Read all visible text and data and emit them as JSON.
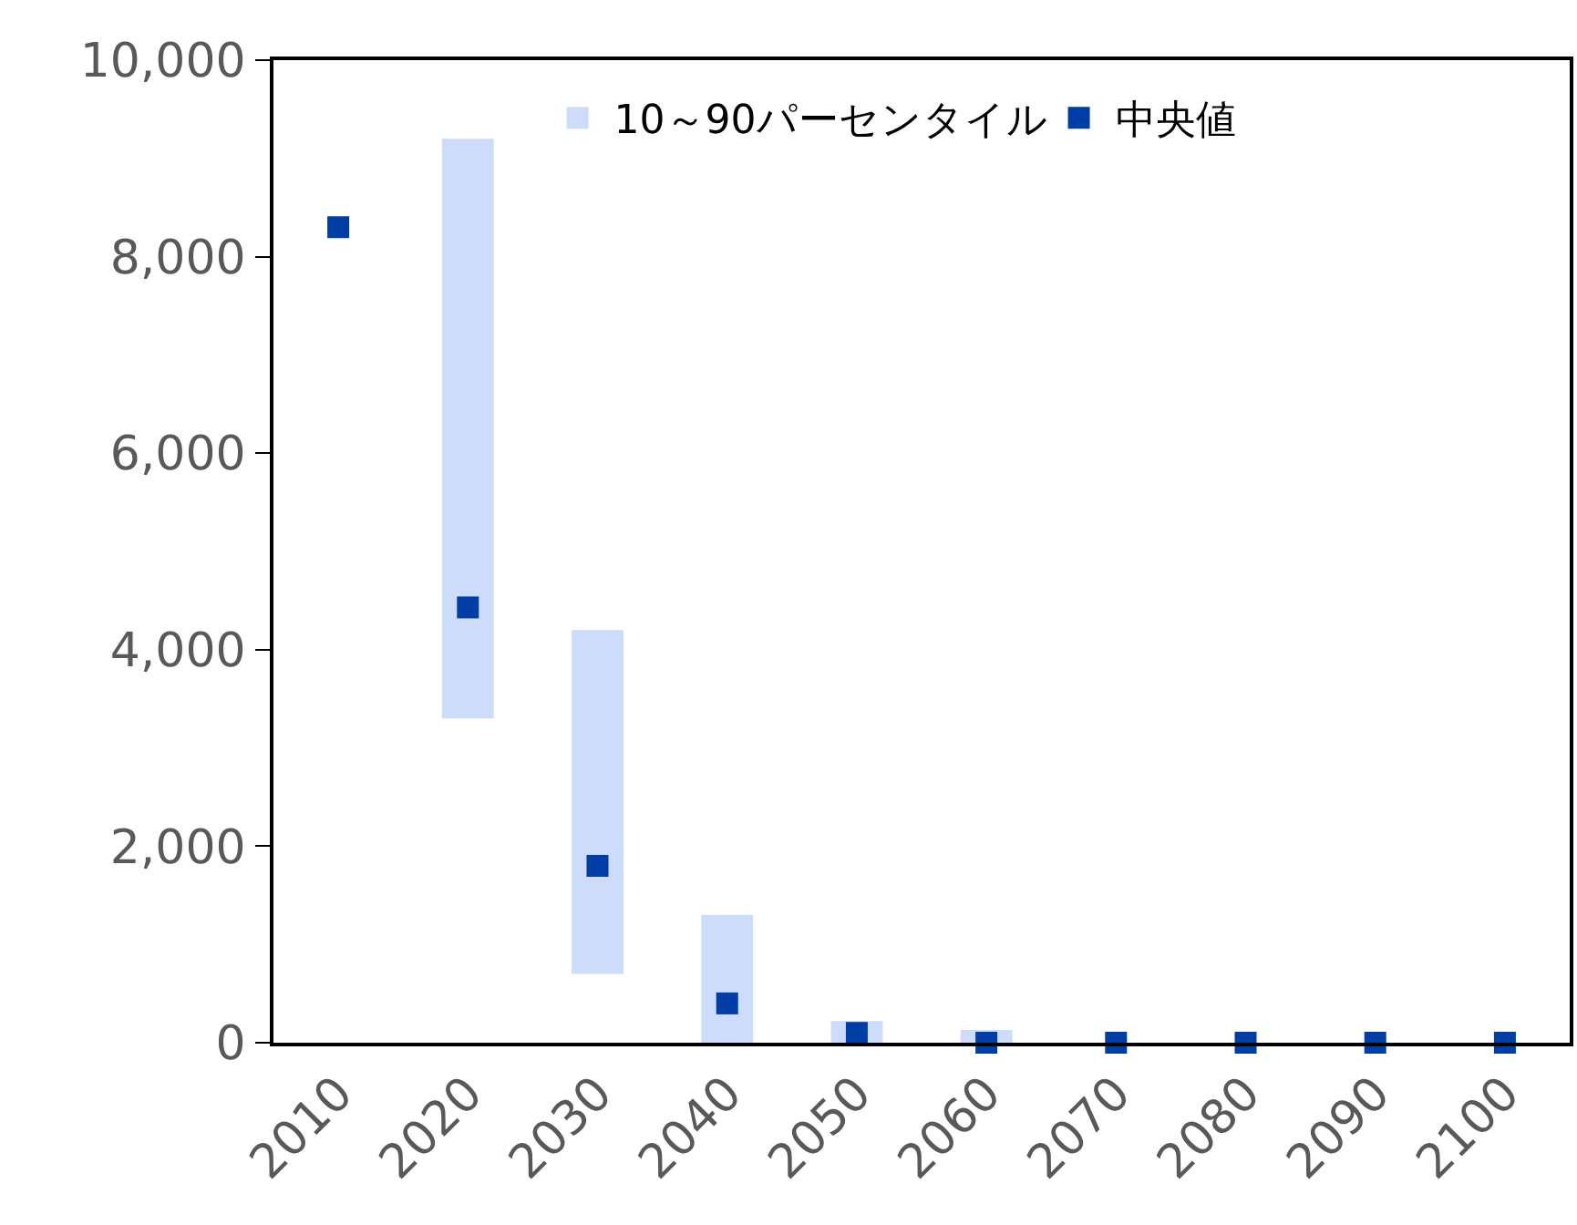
{
  "chart_data": {
    "type": "bar",
    "categories": [
      "2010",
      "2020",
      "2030",
      "2040",
      "2050",
      "2060",
      "2070",
      "2080",
      "2090",
      "2100"
    ],
    "ylim": [
      0,
      10000
    ],
    "yticks": [
      {
        "value": 0,
        "label": "0"
      },
      {
        "value": 2000,
        "label": "2,000"
      },
      {
        "value": 4000,
        "label": "4,000"
      },
      {
        "value": 6000,
        "label": "6,000"
      },
      {
        "value": 8000,
        "label": "8,000"
      },
      {
        "value": 10000,
        "label": "10,000"
      }
    ],
    "legend": "top right",
    "series": [
      {
        "name": "10～90パーセンタイル",
        "color": "#cddcfb",
        "base": [
          null,
          3300,
          700,
          0,
          0,
          0,
          null,
          null,
          null,
          null
        ],
        "values": [
          null,
          5900,
          3500,
          1300,
          220,
          130,
          null,
          null,
          null,
          null
        ]
      },
      {
        "name": "中央値",
        "type": "scatter",
        "marker": "square",
        "color": "#003da5",
        "values": [
          8300,
          4430,
          1800,
          400,
          100,
          0,
          0,
          0,
          0,
          0
        ]
      }
    ]
  }
}
